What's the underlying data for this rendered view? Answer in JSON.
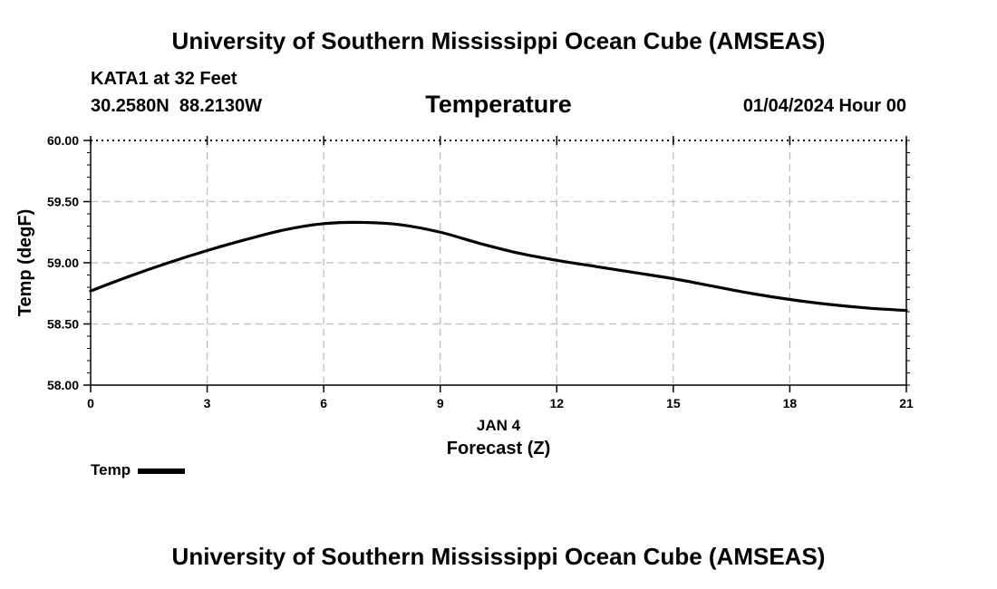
{
  "header": {
    "title": "University of Southern Mississippi Ocean Cube (AMSEAS)",
    "station": "KATA1 at 32 Feet",
    "coordinates": "30.2580N  88.2130W",
    "variable": "Temperature",
    "datetime": "01/04/2024 Hour 00"
  },
  "footer": {
    "title": "University of Southern Mississippi Ocean Cube (AMSEAS)"
  },
  "legend": {
    "label": "Temp",
    "color": "#000000"
  },
  "chart_data": {
    "type": "line",
    "title": "Temperature",
    "xlabel": "Forecast (Z)",
    "xlabel_date": "JAN 4",
    "ylabel": "Temp (degF)",
    "xlim": [
      0,
      21
    ],
    "ylim": [
      58.0,
      60.0
    ],
    "x_ticks": [
      0,
      3,
      6,
      9,
      12,
      15,
      18,
      21
    ],
    "x_tick_labels": [
      "0",
      "3",
      "6",
      "9",
      "12",
      "15",
      "18",
      "21"
    ],
    "y_ticks": [
      58.0,
      58.5,
      59.0,
      59.5,
      60.0
    ],
    "y_tick_labels": [
      "58.00",
      "58.50",
      "59.00",
      "59.50",
      "60.00"
    ],
    "grid": true,
    "series": [
      {
        "name": "Temp",
        "color": "#000000",
        "x": [
          0,
          1,
          2,
          3,
          4,
          5,
          6,
          7,
          8,
          9,
          10,
          11,
          12,
          13,
          14,
          15,
          16,
          17,
          18,
          19,
          20,
          21
        ],
        "y": [
          58.77,
          58.89,
          59.0,
          59.1,
          59.19,
          59.27,
          59.32,
          59.33,
          59.31,
          59.25,
          59.16,
          59.08,
          59.02,
          58.97,
          58.92,
          58.87,
          58.81,
          58.75,
          58.7,
          58.66,
          58.63,
          58.61
        ]
      }
    ]
  }
}
